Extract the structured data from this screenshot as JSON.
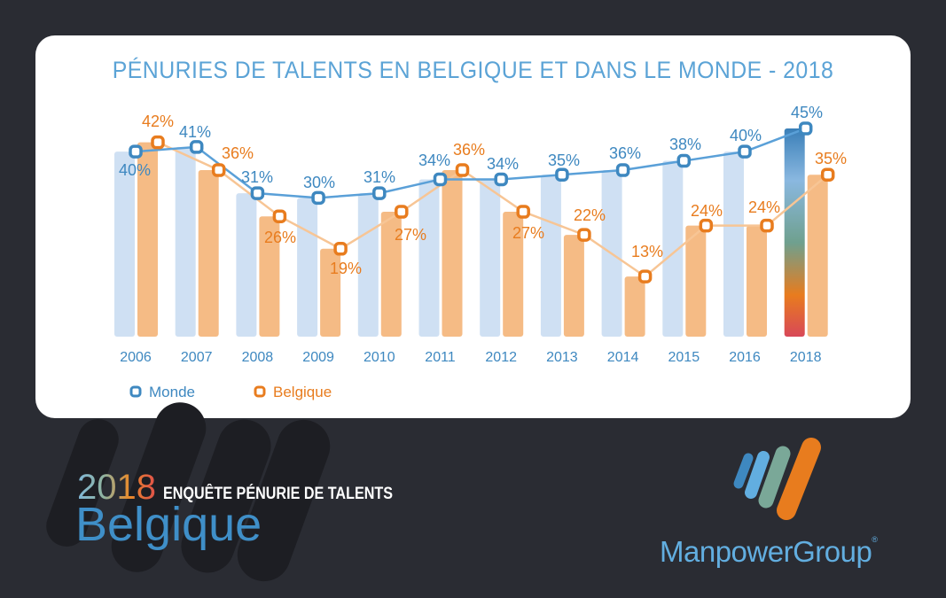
{
  "chart_data": {
    "type": "bar+line",
    "title": "PÉNURIES DE TALENTS EN BELGIQUE ET DANS LE MONDE - 2018",
    "categories": [
      "2006",
      "2007",
      "2008",
      "2009",
      "2010",
      "2011",
      "2012",
      "2013",
      "2014",
      "2015",
      "2016",
      "2018"
    ],
    "series": [
      {
        "name": "Monde",
        "values": [
          40,
          41,
          31,
          30,
          31,
          34,
          34,
          35,
          36,
          38,
          40,
          45
        ],
        "color": "#3e88c0",
        "bar_color": "#cfe0f3",
        "line_color": "#5aa0d8"
      },
      {
        "name": "Belgique",
        "values": [
          42,
          36,
          26,
          19,
          27,
          36,
          27,
          22,
          13,
          24,
          24,
          35
        ],
        "color": "#e87c1e",
        "bar_color": "#f5bb85",
        "line_color": "#f7c595"
      }
    ],
    "value_suffix": "%",
    "ylim": [
      0,
      45
    ],
    "grid": false,
    "legend": "bottom-left",
    "highlight_category": "2018"
  },
  "footer": {
    "year": "2018",
    "survey": "ENQUÊTE PÉNURIE DE TALENTS",
    "country": "Belgique",
    "brand": "ManpowerGroup",
    "brand_mark": "®"
  }
}
